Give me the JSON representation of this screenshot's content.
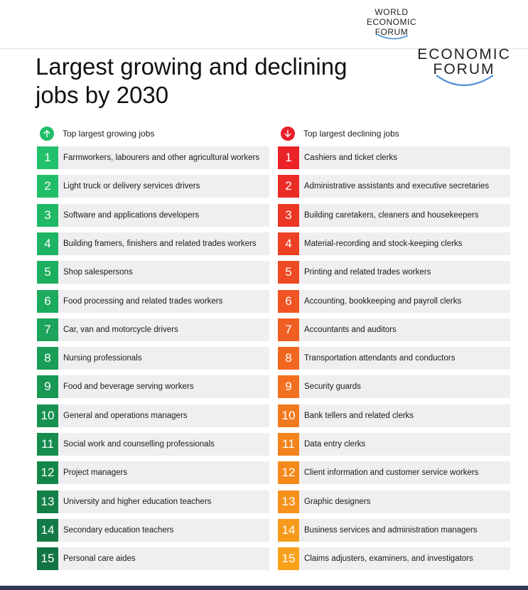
{
  "logo_small": [
    "WORLD",
    "ECONOMIC",
    "FORUM"
  ],
  "logo_big": [
    "ECONOMIC",
    "FORUM"
  ],
  "title_line1": "Largest growing and declining",
  "title_line2": "jobs by 2030",
  "growing": {
    "heading": "Top largest growing jobs",
    "icon": "arrow-up-icon",
    "accent": "#1fbe6a",
    "items": [
      {
        "rank": "1",
        "label": "Farmworkers, labourers and other agricultural workers",
        "color": "#22c16c"
      },
      {
        "rank": "2",
        "label": "Light truck or delivery services drivers",
        "color": "#21bd69"
      },
      {
        "rank": "3",
        "label": "Software and applications developers",
        "color": "#1fb966"
      },
      {
        "rank": "4",
        "label": "Building framers, finishers and related trades workers",
        "color": "#1eb463"
      },
      {
        "rank": "5",
        "label": "Shop salespersons",
        "color": "#1daf60"
      },
      {
        "rank": "6",
        "label": "Food processing and related trades workers",
        "color": "#1caa5d"
      },
      {
        "rank": "7",
        "label": "Car, van and motorcycle drivers",
        "color": "#1ba45a"
      },
      {
        "rank": "8",
        "label": "Nursing professionals",
        "color": "#1a9e57"
      },
      {
        "rank": "9",
        "label": "Food and beverage serving workers",
        "color": "#199854"
      },
      {
        "rank": "10",
        "label": "General and operations managers",
        "color": "#179251"
      },
      {
        "rank": "11",
        "label": "Social work and counselling professionals",
        "color": "#168c4e"
      },
      {
        "rank": "12",
        "label": "Project managers",
        "color": "#15864b"
      },
      {
        "rank": "13",
        "label": "University and higher education teachers",
        "color": "#148048"
      },
      {
        "rank": "14",
        "label": "Secondary education teachers",
        "color": "#137a45"
      },
      {
        "rank": "15",
        "label": "Personal care aides",
        "color": "#127442"
      }
    ]
  },
  "declining": {
    "heading": "Top largest declining jobs",
    "icon": "arrow-down-icon",
    "accent": "#e8202a",
    "items": [
      {
        "rank": "1",
        "label": "Cashiers and ticket clerks",
        "color": "#ea2327"
      },
      {
        "rank": "2",
        "label": "Administrative assistants and executive secretaries",
        "color": "#eb2c26"
      },
      {
        "rank": "3",
        "label": "Building caretakers, cleaners and housekeepers",
        "color": "#ec3625"
      },
      {
        "rank": "4",
        "label": "Material-recording and stock-keeping clerks",
        "color": "#ed4024"
      },
      {
        "rank": "5",
        "label": "Printing and related trades workers",
        "color": "#ee4a23"
      },
      {
        "rank": "6",
        "label": "Accounting, bookkeeping and payroll clerks",
        "color": "#ef5422"
      },
      {
        "rank": "7",
        "label": "Accountants and auditors",
        "color": "#f05e21"
      },
      {
        "rank": "8",
        "label": "Transportation attendants and conductors",
        "color": "#f16720"
      },
      {
        "rank": "9",
        "label": "Security guards",
        "color": "#f2701f"
      },
      {
        "rank": "10",
        "label": "Bank tellers and related clerks",
        "color": "#f3791e"
      },
      {
        "rank": "11",
        "label": "Data entry clerks",
        "color": "#f4821d"
      },
      {
        "rank": "12",
        "label": "Client information and customer service workers",
        "color": "#f58a1c"
      },
      {
        "rank": "13",
        "label": "Graphic designers",
        "color": "#f6921c"
      },
      {
        "rank": "14",
        "label": "Business services and administration managers",
        "color": "#f79a1c"
      },
      {
        "rank": "15",
        "label": "Claims adjusters, examiners, and investigators",
        "color": "#f8a21c"
      }
    ]
  },
  "colors": {
    "row_background": "#efeff1",
    "logo_arc": "#4a8fd9",
    "bottom_bar": "#303a55"
  }
}
